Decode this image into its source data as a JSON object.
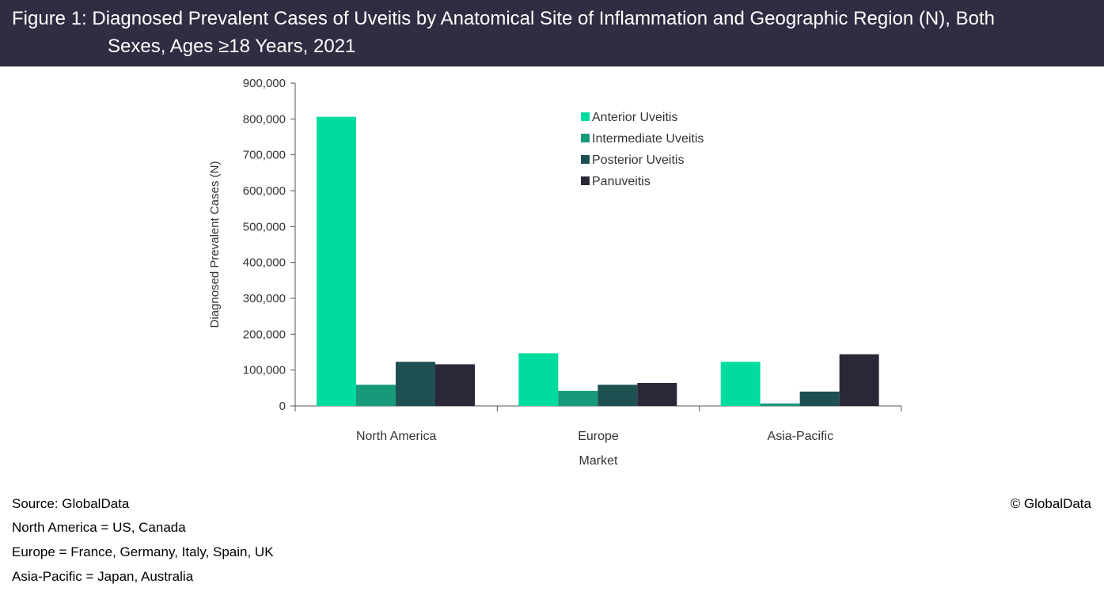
{
  "header": {
    "title_line1": "Figure 1: Diagnosed Prevalent Cases of Uveitis by Anatomical Site of Inflammation and Geographic Region (N), Both",
    "title_line2": "Sexes, Ages ≥18 Years, 2021"
  },
  "footer": {
    "source": "Source: GlobalData",
    "notes": [
      "North America = US, Canada",
      "Europe = France, Germany, Italy, Spain, UK",
      "Asia-Pacific = Japan, Australia"
    ],
    "copyright": "© GlobalData"
  },
  "chart_data": {
    "type": "bar",
    "title": "Figure 1: Diagnosed Prevalent Cases of Uveitis by Anatomical Site of Inflammation and Geographic Region (N), Both Sexes, Ages ≥18 Years, 2021",
    "xlabel": "Market",
    "ylabel": "Diagnosed Prevalent Cases (N)",
    "categories": [
      "North America",
      "Europe",
      "Asia-Pacific"
    ],
    "series": [
      {
        "name": "Anterior Uveitis",
        "color": "#00dba0",
        "values": [
          806000,
          147000,
          123000
        ]
      },
      {
        "name": "Intermediate Uveitis",
        "color": "#17997a",
        "values": [
          59000,
          42000,
          7000
        ]
      },
      {
        "name": "Posterior Uveitis",
        "color": "#1e5052",
        "values": [
          123000,
          59000,
          40000
        ]
      },
      {
        "name": "Panuveitis",
        "color": "#2a2838",
        "values": [
          116000,
          64000,
          144000
        ]
      }
    ],
    "ylim": [
      0,
      900000
    ],
    "yticks": [
      0,
      100000,
      200000,
      300000,
      400000,
      500000,
      600000,
      700000,
      800000,
      900000
    ],
    "ytick_labels": [
      "0",
      "100,000",
      "200,000",
      "300,000",
      "400,000",
      "500,000",
      "600,000",
      "700,000",
      "800,000",
      "900,000"
    ],
    "grid": false,
    "legend_position": "top-right"
  }
}
